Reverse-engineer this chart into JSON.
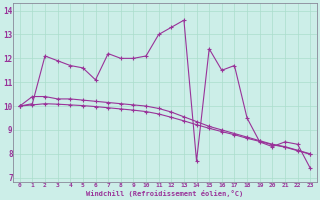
{
  "xlabel": "Windchill (Refroidissement éolien,°C)",
  "background_color": "#cceee8",
  "line_color": "#993399",
  "grid_color": "#aaddcc",
  "x_ticks": [
    0,
    1,
    2,
    3,
    4,
    5,
    6,
    7,
    8,
    9,
    10,
    11,
    12,
    13,
    14,
    15,
    16,
    17,
    18,
    19,
    20,
    21,
    22,
    23
  ],
  "y_ticks": [
    7,
    8,
    9,
    10,
    11,
    12,
    13,
    14
  ],
  "ylim": [
    6.8,
    14.3
  ],
  "xlim": [
    -0.5,
    23.5
  ],
  "series1_x": [
    0,
    1,
    2,
    3,
    4,
    5,
    6,
    7,
    8,
    9,
    10,
    11,
    12,
    13,
    14,
    15,
    16,
    17,
    18,
    19,
    20,
    21,
    22,
    23
  ],
  "series1_y": [
    10.0,
    10.1,
    12.1,
    11.9,
    11.7,
    11.6,
    11.1,
    12.2,
    12.0,
    12.0,
    12.1,
    13.0,
    13.3,
    13.6,
    7.7,
    12.4,
    11.5,
    11.7,
    9.5,
    8.5,
    8.3,
    8.5,
    8.4,
    7.4
  ],
  "series2_x": [
    0,
    1,
    2,
    3,
    4,
    5,
    6,
    7,
    8,
    9,
    10,
    11,
    12,
    13,
    14,
    15,
    16,
    17,
    18,
    19,
    20,
    21,
    22,
    23
  ],
  "series2_y": [
    10.0,
    10.4,
    10.4,
    10.3,
    10.3,
    10.25,
    10.2,
    10.15,
    10.1,
    10.05,
    10.0,
    9.9,
    9.75,
    9.55,
    9.35,
    9.15,
    9.0,
    8.85,
    8.7,
    8.55,
    8.4,
    8.3,
    8.15,
    8.0
  ],
  "series3_x": [
    0,
    1,
    2,
    3,
    4,
    5,
    6,
    7,
    8,
    9,
    10,
    11,
    12,
    13,
    14,
    15,
    16,
    17,
    18,
    19,
    20,
    21,
    22,
    23
  ],
  "series3_y": [
    10.0,
    10.05,
    10.1,
    10.08,
    10.05,
    10.02,
    9.98,
    9.93,
    9.88,
    9.83,
    9.77,
    9.67,
    9.53,
    9.38,
    9.22,
    9.07,
    8.93,
    8.8,
    8.65,
    8.52,
    8.38,
    8.28,
    8.13,
    7.98
  ]
}
